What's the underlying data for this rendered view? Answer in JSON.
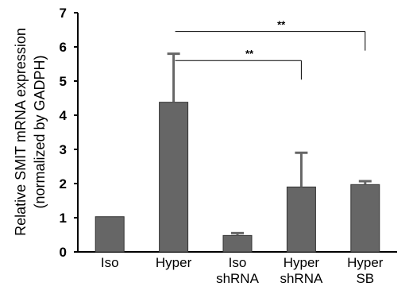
{
  "chart_data": {
    "type": "bar",
    "ylabel": [
      "Relative SMIT mRNA expression",
      "(normalized by GADPH)"
    ],
    "ylim": [
      0,
      7
    ],
    "yticks": [
      0,
      1,
      2,
      3,
      4,
      5,
      6,
      7
    ],
    "categories": [
      [
        "Iso"
      ],
      [
        "Hyper"
      ],
      [
        "Iso",
        "shRNA"
      ],
      [
        "Hyper",
        "shRNA"
      ],
      [
        "Hyper",
        "SB"
      ]
    ],
    "values": [
      1.03,
      4.38,
      0.48,
      1.9,
      1.97
    ],
    "error_upper": [
      0.0,
      1.42,
      0.07,
      1.0,
      0.1
    ],
    "bar_color": "#666666",
    "significance": [
      {
        "from": 1,
        "to": 4,
        "label": "**"
      },
      {
        "from": 1,
        "to": 3,
        "label": "**"
      }
    ],
    "grid": false,
    "legend": "none"
  }
}
